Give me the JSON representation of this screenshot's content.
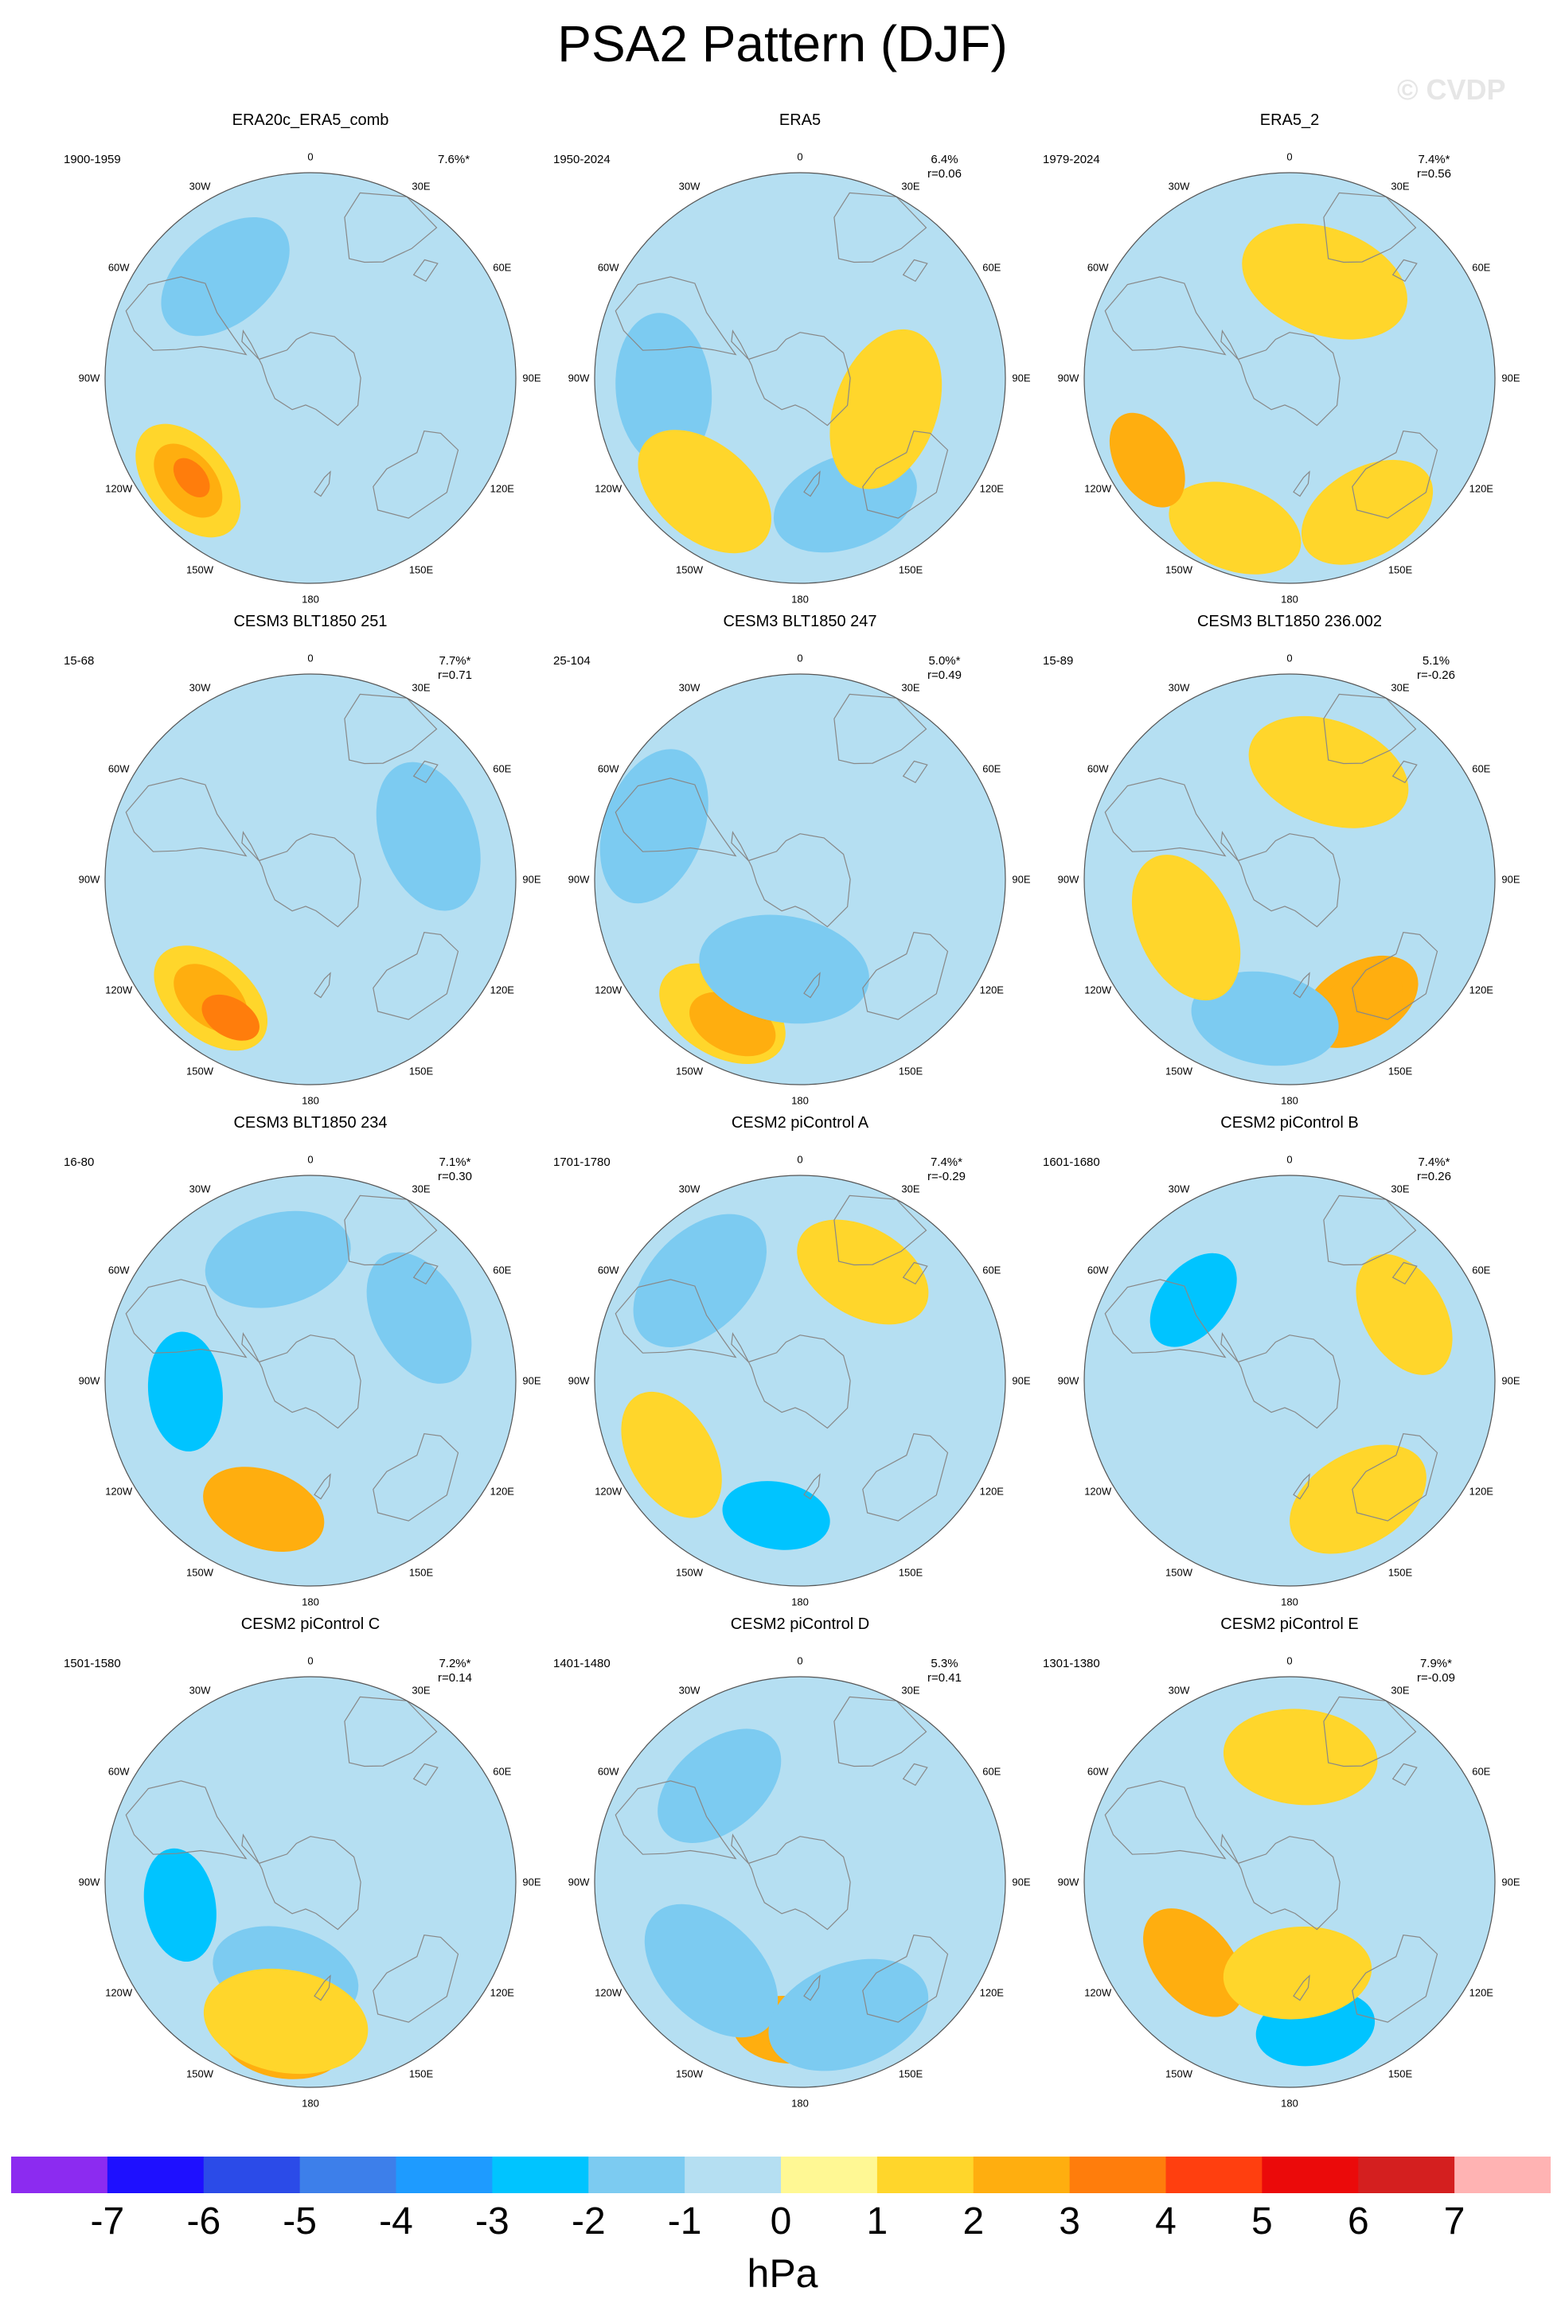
{
  "title": "PSA2 Pattern (DJF)",
  "watermark": "© CVDP",
  "colors": {
    "land": "#ffffff",
    "coast": "#888888",
    "border": "#555555"
  },
  "lon_labels": [
    "0",
    "30E",
    "60E",
    "90E",
    "120E",
    "150E",
    "180",
    "150W",
    "120W",
    "90W",
    "60W",
    "30W"
  ],
  "colorbar": {
    "unit": "hPa",
    "ticks": [
      "-7",
      "-6",
      "-5",
      "-4",
      "-3",
      "-2",
      "-1",
      "0",
      "1",
      "2",
      "3",
      "4",
      "5",
      "6",
      "7"
    ],
    "colors": [
      "#8C2BF0",
      "#1E10FF",
      "#2B4BE8",
      "#3D7FEA",
      "#1E9BFF",
      "#00C4FF",
      "#7CCBF1",
      "#B5DFF2",
      "#FFF894",
      "#FFD62B",
      "#FFAE0F",
      "#FF7D0C",
      "#FF3F0F",
      "#EB0A0A",
      "#D41F1F",
      "#FFB3B3"
    ]
  },
  "chart_data": [
    {
      "type": "heatmap",
      "title": "ERA20c_ERA5_comb",
      "period": "1900-1959",
      "variance": "7.6%*",
      "corr": "",
      "blobs": [
        [
          -130,
          70,
          1.9
        ],
        [
          -130,
          70,
          2.7
        ],
        [
          -130,
          68,
          3.4
        ],
        [
          -40,
          58,
          -1.6
        ]
      ]
    },
    {
      "type": "heatmap",
      "title": "ERA5",
      "period": "1950-2024",
      "variance": "6.4%",
      "corr": "r=0.06",
      "blobs": [
        [
          -95,
          60,
          -1.5
        ],
        [
          160,
          58,
          -1.6
        ],
        [
          -140,
          65,
          1.5
        ],
        [
          110,
          40,
          1.3
        ]
      ]
    },
    {
      "type": "heatmap",
      "title": "ERA5_2",
      "period": "1979-2024",
      "variance": "7.4%*",
      "corr": "r=0.56",
      "blobs": [
        [
          -160,
          70,
          1.8
        ],
        [
          150,
          68,
          1.7
        ],
        [
          -120,
          72,
          2.4
        ],
        [
          20,
          45,
          1.2
        ]
      ]
    },
    {
      "type": "heatmap",
      "title": "CESM3 BLT1850 251",
      "period": "15-68",
      "variance": "7.7%*",
      "corr": "r=0.71",
      "blobs": [
        [
          -140,
          68,
          1.9
        ],
        [
          -140,
          68,
          2.7
        ],
        [
          -150,
          70,
          3.1
        ],
        [
          70,
          55,
          -1.5
        ]
      ]
    },
    {
      "type": "heatmap",
      "title": "CESM3 BLT1850 247",
      "period": "25-104",
      "variance": "5.0%*",
      "corr": "r=0.49",
      "blobs": [
        [
          -150,
          68,
          1.8
        ],
        [
          -155,
          70,
          2.6
        ],
        [
          -70,
          68,
          -1.4
        ],
        [
          -170,
          40,
          -1.2
        ]
      ]
    },
    {
      "type": "heatmap",
      "title": "CESM3 BLT1850 236.002",
      "period": "15-89",
      "variance": "5.1%",
      "corr": "r=-0.26",
      "blobs": [
        [
          150,
          62,
          2.0
        ],
        [
          150,
          62,
          2.6
        ],
        [
          -170,
          62,
          -1.6
        ],
        [
          -115,
          50,
          1.5
        ],
        [
          20,
          50,
          1.3
        ]
      ]
    },
    {
      "type": "heatmap",
      "title": "CESM3 BLT1850 234",
      "period": "16-80",
      "variance": "7.1%*",
      "corr": "r=0.30",
      "blobs": [
        [
          -95,
          55,
          -2.1
        ],
        [
          -95,
          52,
          -2.8
        ],
        [
          60,
          55,
          -1.7
        ],
        [
          -15,
          55,
          -1.6
        ],
        [
          -160,
          60,
          2.0
        ]
      ]
    },
    {
      "type": "heatmap",
      "title": "CESM2 piControl A",
      "period": "1701-1780",
      "variance": "7.4%*",
      "corr": "r=-0.29",
      "blobs": [
        [
          -170,
          60,
          -2.3
        ],
        [
          -170,
          60,
          -2.9
        ],
        [
          -120,
          65,
          1.8
        ],
        [
          30,
          55,
          1.7
        ],
        [
          -45,
          62,
          -1.4
        ]
      ]
    },
    {
      "type": "heatmap",
      "title": "CESM2 piControl B",
      "period": "1601-1680",
      "variance": "7.4%*",
      "corr": "r=0.26",
      "blobs": [
        [
          -50,
          55,
          -2.3
        ],
        [
          -50,
          55,
          -2.9
        ],
        [
          60,
          58,
          1.9
        ],
        [
          150,
          60,
          1.6
        ]
      ]
    },
    {
      "type": "heatmap",
      "title": "CESM2 piControl C",
      "period": "1501-1580",
      "variance": "7.2%*",
      "corr": "r=0.14",
      "blobs": [
        [
          -100,
          58,
          -2.2
        ],
        [
          -100,
          58,
          -2.9
        ],
        [
          -170,
          70,
          2.0
        ],
        [
          -165,
          42,
          -1.6
        ],
        [
          -170,
          62,
          1.3
        ]
      ]
    },
    {
      "type": "heatmap",
      "title": "CESM2 piControl D",
      "period": "1401-1480",
      "variance": "5.3%",
      "corr": "r=0.41",
      "blobs": [
        [
          -175,
          65,
          2.3
        ],
        [
          -175,
          65,
          2.9
        ],
        [
          -40,
          55,
          -1.7
        ],
        [
          -135,
          55,
          -1.4
        ],
        [
          160,
          62,
          -1.3
        ]
      ]
    },
    {
      "type": "heatmap",
      "title": "CESM2 piControl E",
      "period": "1301-1380",
      "variance": "7.9%*",
      "corr": "r=-0.09",
      "blobs": [
        [
          170,
          65,
          -2.1
        ],
        [
          170,
          65,
          -2.8
        ],
        [
          -130,
          55,
          2.0
        ],
        [
          5,
          55,
          1.5
        ],
        [
          175,
          40,
          1.6
        ]
      ]
    }
  ]
}
